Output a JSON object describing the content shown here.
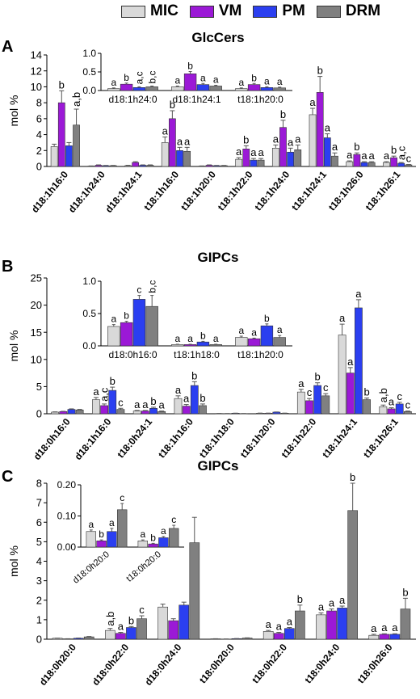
{
  "legend": {
    "items": [
      {
        "label": "MIC",
        "color": "#d9d9d9"
      },
      {
        "label": "VM",
        "color": "#9b19d6"
      },
      {
        "label": "PM",
        "color": "#2b3ff0"
      },
      {
        "label": "DRM",
        "color": "#808080"
      }
    ]
  },
  "panels": [
    {
      "letter": "A",
      "title": "GlcCers"
    },
    {
      "letter": "B",
      "title": "GIPCs"
    },
    {
      "letter": "C",
      "title": "GIPCs"
    }
  ],
  "chart_data": [
    {
      "id": "A-main",
      "type": "bar",
      "panel": "A",
      "title": "GlcCers",
      "ylabel": "mol %",
      "ylim": [
        0,
        14
      ],
      "yticks": [
        0,
        2,
        4,
        6,
        8,
        10,
        12,
        14
      ],
      "categories": [
        "d18:1h16:0",
        "d18:1h24:0",
        "d18:1h24:1",
        "t18:1h16:0",
        "t18:1h20:0",
        "t18:1h22:0",
        "t18:1h24:0",
        "t18:1h24:1",
        "t18:1h26:0",
        "t18:1h26:1"
      ],
      "series": [
        {
          "name": "MIC",
          "values": [
            2.5,
            0.05,
            0.1,
            3.0,
            0.05,
            0.9,
            2.3,
            6.5,
            0.6,
            0.5
          ],
          "errors": [
            0.3,
            0.02,
            0.05,
            0.7,
            0.02,
            0.2,
            0.4,
            0.8,
            0.1,
            0.1
          ]
        },
        {
          "name": "VM",
          "values": [
            8.0,
            0.15,
            0.5,
            6.0,
            0.15,
            2.2,
            4.9,
            9.3,
            1.5,
            1.1
          ],
          "errors": [
            1.5,
            0.05,
            0.1,
            1.0,
            0.05,
            0.4,
            0.9,
            2.0,
            0.2,
            0.2
          ]
        },
        {
          "name": "PM",
          "values": [
            2.6,
            0.1,
            0.15,
            2.0,
            0.1,
            0.8,
            1.8,
            3.6,
            0.5,
            0.4
          ],
          "errors": [
            0.4,
            0.03,
            0.05,
            0.4,
            0.03,
            0.2,
            0.5,
            0.5,
            0.1,
            0.1
          ]
        },
        {
          "name": "DRM",
          "values": [
            5.2,
            0.1,
            0.15,
            1.9,
            0.1,
            0.8,
            2.1,
            1.3,
            0.5,
            0.2
          ],
          "errors": [
            2.0,
            0.03,
            0.05,
            0.5,
            0.03,
            0.2,
            0.6,
            0.4,
            0.1,
            0.05
          ]
        }
      ],
      "annotations": [
        [
          "",
          "b",
          "",
          "a,b"
        ],
        [
          "",
          "",
          "",
          ""
        ],
        [
          "",
          "",
          "",
          ""
        ],
        [
          "a",
          "b",
          "a",
          "a"
        ],
        [
          "",
          "",
          "",
          ""
        ],
        [
          "a",
          "b",
          "a",
          "a"
        ],
        [
          "a",
          "b",
          "a",
          "a"
        ],
        [
          "a",
          "b",
          "a",
          "a"
        ],
        [
          "a",
          "b",
          "a",
          "a"
        ],
        [
          "a",
          "b",
          "a,c",
          "c"
        ]
      ]
    },
    {
      "id": "A-inset",
      "type": "bar",
      "panel": "A",
      "inset": true,
      "ylim": [
        0,
        1.0
      ],
      "yticks": [
        0.0,
        0.5,
        1.0
      ],
      "yformat": 1,
      "categories": [
        "d18:1h24:0",
        "d18:1h24:1",
        "t18:1h20:0"
      ],
      "series": [
        {
          "name": "MIC",
          "values": [
            0.05,
            0.1,
            0.05
          ],
          "errors": [
            0.02,
            0.02,
            0.02
          ]
        },
        {
          "name": "VM",
          "values": [
            0.17,
            0.45,
            0.16
          ],
          "errors": [
            0.03,
            0.06,
            0.03
          ]
        },
        {
          "name": "PM",
          "values": [
            0.08,
            0.16,
            0.08
          ],
          "errors": [
            0.02,
            0.03,
            0.02
          ]
        },
        {
          "name": "DRM",
          "values": [
            0.1,
            0.12,
            0.07
          ],
          "errors": [
            0.02,
            0.02,
            0.02
          ]
        }
      ],
      "annotations": [
        [
          "a",
          "b",
          "a,c",
          "b,c"
        ],
        [
          "a",
          "b",
          "a",
          "a"
        ],
        [
          "a",
          "b",
          "a",
          "a"
        ]
      ]
    },
    {
      "id": "B-main",
      "type": "bar",
      "panel": "B",
      "title": "GIPCs",
      "ylabel": "mol %",
      "ylim": [
        0,
        25
      ],
      "yticks": [
        0,
        5,
        10,
        15,
        20,
        25
      ],
      "categories": [
        "d18:0h16:0",
        "d18:1h16:0",
        "t18:0h24:1",
        "t18:1h16:0",
        "t18:1h18:0",
        "t18:1h20:0",
        "t18:1h22:0",
        "t18:1h24:1",
        "t18:1h26:1"
      ],
      "series": [
        {
          "name": "MIC",
          "values": [
            0.3,
            2.6,
            0.5,
            2.8,
            0.05,
            0.1,
            4.0,
            14.5,
            1.3
          ],
          "errors": [
            0.05,
            0.4,
            0.1,
            0.5,
            0.01,
            0.02,
            0.5,
            2.0,
            0.3
          ]
        },
        {
          "name": "VM",
          "values": [
            0.4,
            1.5,
            0.5,
            1.4,
            0.04,
            0.1,
            2.4,
            7.5,
            0.9
          ],
          "errors": [
            0.05,
            0.3,
            0.1,
            0.3,
            0.01,
            0.02,
            0.4,
            1.0,
            0.2
          ]
        },
        {
          "name": "PM",
          "values": [
            0.8,
            4.3,
            1.0,
            5.2,
            0.1,
            0.3,
            5.2,
            19.5,
            1.8
          ],
          "errors": [
            0.1,
            0.6,
            0.2,
            0.7,
            0.01,
            0.03,
            0.5,
            1.5,
            0.3
          ]
        },
        {
          "name": "DRM",
          "values": [
            0.7,
            0.8,
            0.4,
            1.5,
            0.04,
            0.1,
            3.3,
            2.6,
            0.4
          ],
          "errors": [
            0.1,
            0.2,
            0.1,
            0.3,
            0.01,
            0.02,
            0.4,
            0.3,
            0.1
          ]
        }
      ],
      "annotations": [
        [
          "",
          "",
          "",
          ""
        ],
        [
          "a",
          "a,c",
          "b",
          "c"
        ],
        [
          "a",
          "a",
          "b",
          "a"
        ],
        [
          "a",
          "a",
          "b",
          "b"
        ],
        [
          "",
          "",
          "",
          ""
        ],
        [
          "",
          "",
          "",
          ""
        ],
        [
          "a",
          "c",
          "b",
          "c"
        ],
        [
          "a",
          "a",
          "a",
          "b"
        ],
        [
          "a,b",
          "a",
          "c",
          "c"
        ]
      ]
    },
    {
      "id": "B-inset",
      "type": "bar",
      "panel": "B",
      "inset": true,
      "ylim": [
        0,
        1.0
      ],
      "yticks": [
        0.0,
        0.5,
        1.0
      ],
      "yformat": 1,
      "categories": [
        "d18:0h16:0",
        "t18:1h18:0",
        "t18:1h20:0"
      ],
      "series": [
        {
          "name": "MIC",
          "values": [
            0.3,
            0.02,
            0.13
          ],
          "errors": [
            0.03,
            0.005,
            0.02
          ]
        },
        {
          "name": "VM",
          "values": [
            0.36,
            0.02,
            0.11
          ],
          "errors": [
            0.02,
            0.005,
            0.01
          ]
        },
        {
          "name": "PM",
          "values": [
            0.72,
            0.06,
            0.31
          ],
          "errors": [
            0.06,
            0.01,
            0.03
          ]
        },
        {
          "name": "DRM",
          "values": [
            0.61,
            0.02,
            0.13
          ],
          "errors": [
            0.17,
            0.005,
            0.03
          ]
        }
      ],
      "annotations": [
        [
          "a",
          "b",
          "c",
          "b,c"
        ],
        [
          "a",
          "a",
          "b",
          "a"
        ],
        [
          "a",
          "a",
          "b",
          "a"
        ]
      ]
    },
    {
      "id": "C-main",
      "type": "bar",
      "panel": "C",
      "title": "GIPCs",
      "ylabel": "mol %",
      "ylim": [
        0,
        8
      ],
      "yticks": [
        0,
        1,
        2,
        3,
        4,
        5,
        6,
        7,
        8
      ],
      "categories": [
        "d18:0h20:0",
        "d18:0h22:0",
        "d18:0h24:0",
        "t18:0h20:0",
        "t18:0h22:0",
        "t18:0h24:0",
        "t18:0h26:0"
      ],
      "series": [
        {
          "name": "MIC",
          "values": [
            0.05,
            0.45,
            1.65,
            0.02,
            0.4,
            1.25,
            0.2
          ],
          "errors": [
            0.005,
            0.1,
            0.15,
            0.005,
            0.05,
            0.1,
            0.05
          ]
        },
        {
          "name": "VM",
          "values": [
            0.02,
            0.3,
            0.95,
            0.01,
            0.3,
            1.45,
            0.25
          ],
          "errors": [
            0.005,
            0.05,
            0.1,
            0.005,
            0.05,
            0.1,
            0.03
          ]
        },
        {
          "name": "PM",
          "values": [
            0.05,
            0.6,
            1.75,
            0.03,
            0.55,
            1.6,
            0.25
          ],
          "errors": [
            0.01,
            0.05,
            0.15,
            0.005,
            0.05,
            0.1,
            0.03
          ]
        },
        {
          "name": "DRM",
          "values": [
            0.12,
            1.05,
            4.95,
            0.06,
            1.45,
            6.6,
            1.55
          ],
          "errors": [
            0.02,
            0.15,
            1.3,
            0.01,
            0.3,
            1.6,
            0.55
          ]
        }
      ],
      "annotations": [
        [
          "",
          "",
          "",
          ""
        ],
        [
          "a,b",
          "a",
          "b",
          "c"
        ],
        [
          "",
          "",
          "",
          ""
        ],
        [
          "",
          "",
          "",
          ""
        ],
        [
          "a",
          "a",
          "a",
          "b"
        ],
        [
          "a",
          "a",
          "a",
          "b"
        ],
        [
          "a",
          "a",
          "a",
          "b"
        ]
      ]
    },
    {
      "id": "C-inset",
      "type": "bar",
      "panel": "C",
      "inset": true,
      "ylim": [
        0,
        0.2
      ],
      "yticks": [
        0.0,
        0.1,
        0.2
      ],
      "yformat": 2,
      "categories": [
        "d18:0h20:0",
        "t18:0h20:0"
      ],
      "series": [
        {
          "name": "MIC",
          "values": [
            0.05,
            0.02
          ],
          "errors": [
            0.005,
            0.003
          ]
        },
        {
          "name": "VM",
          "values": [
            0.02,
            0.01
          ],
          "errors": [
            0.003,
            0.002
          ]
        },
        {
          "name": "PM",
          "values": [
            0.05,
            0.03
          ],
          "errors": [
            0.01,
            0.004
          ]
        },
        {
          "name": "DRM",
          "values": [
            0.12,
            0.06
          ],
          "errors": [
            0.02,
            0.01
          ]
        }
      ],
      "annotations": [
        [
          "a",
          "b",
          "a",
          "c"
        ],
        [
          "a",
          "b",
          "a",
          "c"
        ]
      ]
    }
  ]
}
